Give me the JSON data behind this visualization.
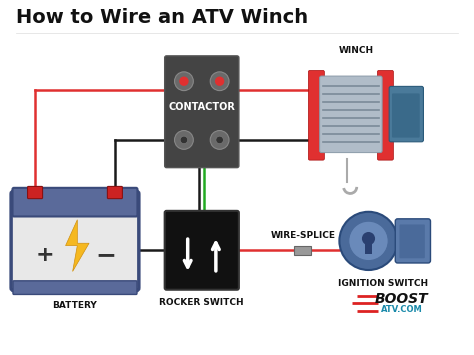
{
  "title": "How to Wire an ATV Winch",
  "title_fontsize": 14,
  "title_fontweight": "bold",
  "bg_color": "#ffffff",
  "labels": {
    "contactor": "CONTACTOR",
    "winch": "WINCH",
    "battery": "BATTERY",
    "rocker_switch": "ROCKER SWITCH",
    "wire_splice": "WIRE-SPLICE",
    "ignition_switch": "IGNITION SWITCH"
  },
  "label_fontsize": 6.5,
  "label_fontweight": "bold",
  "colors": {
    "red": "#e03030",
    "black": "#1a1a1a",
    "green": "#22aa22",
    "gray_wire": "#999999",
    "contactor_bg": "#444444",
    "battery_body": "#e8e8e8",
    "battery_border": "#3a4a7a",
    "battery_top": "#5a6a9a",
    "rocker_bg": "#111111",
    "winch_red": "#e03030",
    "winch_gray": "#8a9aaa",
    "ignition_blue": "#3a5a8a"
  },
  "xlim": [
    0,
    10
  ],
  "ylim": [
    0,
    7.5
  ]
}
